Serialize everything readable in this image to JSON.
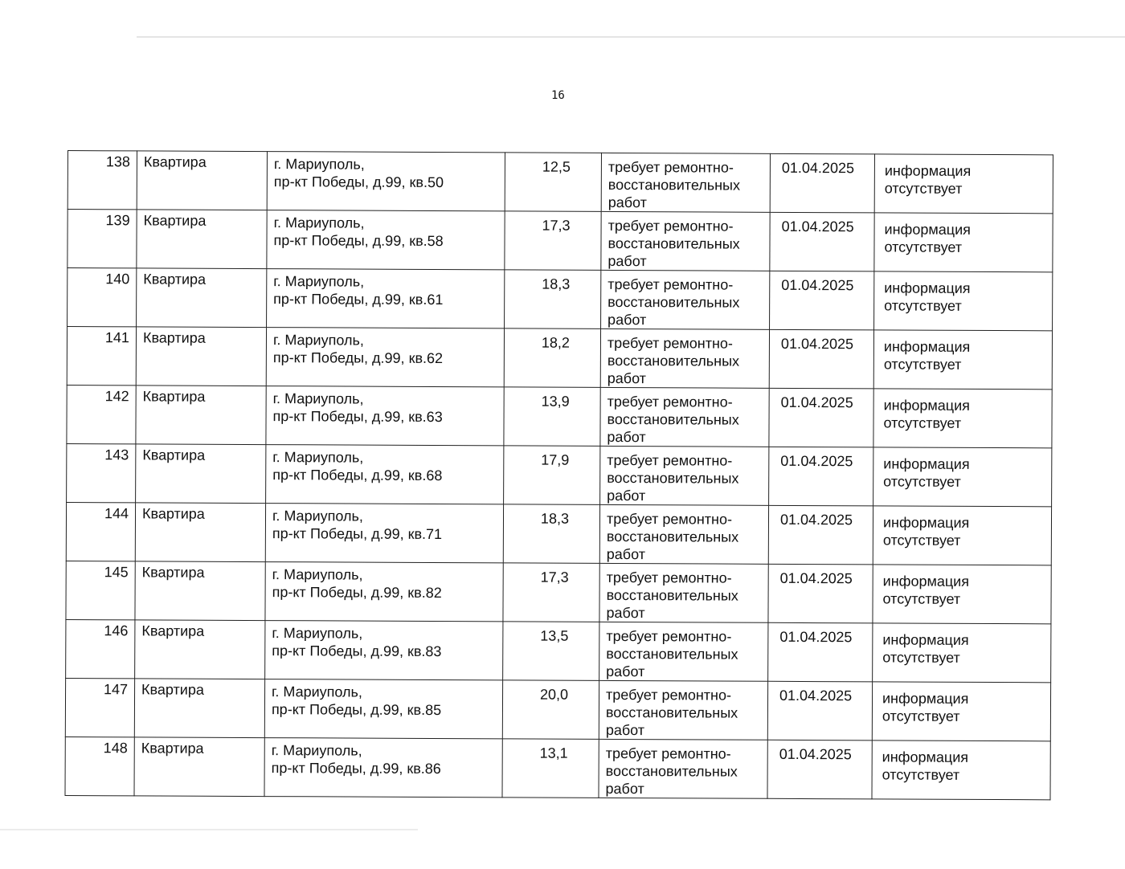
{
  "page_number": "16",
  "rows": [
    {
      "num": "138",
      "type": "Квартира",
      "addr1": "г. Мариуполь,",
      "addr2": "пр-кт Победы, д.99, кв.50",
      "area": "12,5",
      "state": "требует ремонтно-восстановительных работ",
      "date": "01.04.2025",
      "info": "информация отсутствует"
    },
    {
      "num": "139",
      "type": "Квартира",
      "addr1": "г. Мариуполь,",
      "addr2": "пр-кт Победы, д.99, кв.58",
      "area": "17,3",
      "state": "требует ремонтно-восстановительных работ",
      "date": "01.04.2025",
      "info": "информация отсутствует"
    },
    {
      "num": "140",
      "type": "Квартира",
      "addr1": "г. Мариуполь,",
      "addr2": "пр-кт Победы, д.99, кв.61",
      "area": "18,3",
      "state": "требует ремонтно-восстановительных работ",
      "date": "01.04.2025",
      "info": "информация отсутствует"
    },
    {
      "num": "141",
      "type": "Квартира",
      "addr1": "г. Мариуполь,",
      "addr2": "пр-кт Победы, д.99, кв.62",
      "area": "18,2",
      "state": "требует ремонтно-восстановительных работ",
      "date": "01.04.2025",
      "info": "информация отсутствует"
    },
    {
      "num": "142",
      "type": "Квартира",
      "addr1": "г. Мариуполь,",
      "addr2": "пр-кт Победы, д.99, кв.63",
      "area": "13,9",
      "state": "требует ремонтно-восстановительных работ",
      "date": "01.04.2025",
      "info": "информация отсутствует"
    },
    {
      "num": "143",
      "type": "Квартира",
      "addr1": "г. Мариуполь,",
      "addr2": "пр-кт Победы, д.99, кв.68",
      "area": "17,9",
      "state": "требует ремонтно-восстановительных работ",
      "date": "01.04.2025",
      "info": "информация отсутствует"
    },
    {
      "num": "144",
      "type": "Квартира",
      "addr1": "г. Мариуполь,",
      "addr2": "пр-кт Победы, д.99, кв.71",
      "area": "18,3",
      "state": "требует ремонтно-восстановительных работ",
      "date": "01.04.2025",
      "info": "информация отсутствует"
    },
    {
      "num": "145",
      "type": "Квартира",
      "addr1": "г. Мариуполь,",
      "addr2": "пр-кт Победы, д.99, кв.82",
      "area": "17,3",
      "state": "требует ремонтно-восстановительных работ",
      "date": "01.04.2025",
      "info": "информация отсутствует"
    },
    {
      "num": "146",
      "type": "Квартира",
      "addr1": "г. Мариуполь,",
      "addr2": "пр-кт Победы, д.99, кв.83",
      "area": "13,5",
      "state": "требует ремонтно-восстановительных работ",
      "date": "01.04.2025",
      "info": "информация отсутствует"
    },
    {
      "num": "147",
      "type": "Квартира",
      "addr1": "г. Мариуполь,",
      "addr2": "пр-кт Победы, д.99, кв.85",
      "area": "20,0",
      "state": "требует ремонтно-восстановительных работ",
      "date": "01.04.2025",
      "info": "информация отсутствует"
    },
    {
      "num": "148",
      "type": "Квартира",
      "addr1": "г. Мариуполь,",
      "addr2": "пр-кт Победы, д.99, кв.86",
      "area": "13,1",
      "state": "требует ремонтно-восстановительных работ",
      "date": "01.04.2025",
      "info": "информация отсутствует"
    }
  ]
}
